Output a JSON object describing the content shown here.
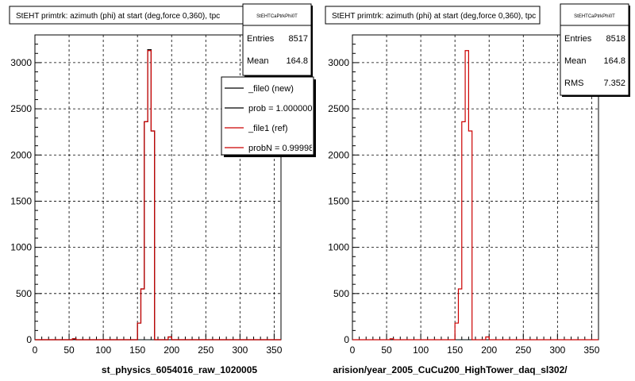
{
  "page": {
    "footer_text": ""
  },
  "chart_data": [
    {
      "type": "histogram",
      "title": "StEHT primtrk: azimuth (phi) at start (deg,force 0,360), tpc",
      "xlabel": "st_physics_6054016_raw_1020005",
      "xlim": [
        0,
        360
      ],
      "ylim": [
        0,
        3300
      ],
      "xticks": [
        0,
        50,
        100,
        150,
        200,
        250,
        300,
        350
      ],
      "yticks": [
        0,
        500,
        1000,
        1500,
        2000,
        2500,
        3000
      ],
      "grid": true,
      "stats": {
        "title": "StEHTCaPtrkPhi0T",
        "entries_label": "Entries",
        "entries": "8517",
        "mean_label": "Mean",
        "mean": "164.8"
      },
      "legend": {
        "placement": "top-right",
        "entries": [
          {
            "label": "_file0 (new)",
            "color": "#000000"
          },
          {
            "label": "prob = 1.000000",
            "color": "#000000"
          },
          {
            "label": "_file1 (ref)",
            "color": "#cc0000"
          },
          {
            "label": "probN = 0.99998",
            "color": "#cc0000"
          }
        ]
      },
      "series": [
        {
          "name": "_file0 (new)",
          "color": "#000000",
          "bin_edges": [
            0,
            5,
            10,
            15,
            20,
            25,
            30,
            35,
            40,
            45,
            50,
            55,
            60,
            65,
            70,
            75,
            80,
            85,
            90,
            95,
            100,
            105,
            110,
            115,
            120,
            125,
            130,
            135,
            140,
            145,
            150,
            155,
            160,
            165,
            170,
            175,
            180,
            185,
            190,
            195,
            200,
            205,
            210,
            215,
            220,
            225,
            230,
            235,
            240,
            245,
            250,
            255,
            260,
            265,
            270,
            275,
            280,
            285,
            290,
            295,
            300,
            305,
            310,
            315,
            320,
            325,
            330,
            335,
            340,
            345,
            350,
            355,
            360
          ],
          "values": [
            0,
            0,
            0,
            0,
            0,
            0,
            0,
            0,
            0,
            0,
            0,
            10,
            0,
            0,
            0,
            0,
            0,
            0,
            0,
            0,
            0,
            0,
            0,
            0,
            0,
            0,
            0,
            0,
            0,
            0,
            180,
            550,
            2360,
            3140,
            2260,
            0,
            0,
            0,
            0,
            30,
            0,
            0,
            0,
            0,
            0,
            0,
            0,
            0,
            0,
            0,
            0,
            0,
            0,
            0,
            0,
            0,
            0,
            0,
            0,
            0,
            0,
            0,
            0,
            0,
            0,
            0,
            0,
            0,
            0,
            0,
            0,
            0
          ]
        },
        {
          "name": "_file1 (ref)",
          "color": "#cc0000",
          "bin_edges": [
            0,
            5,
            10,
            15,
            20,
            25,
            30,
            35,
            40,
            45,
            50,
            55,
            60,
            65,
            70,
            75,
            80,
            85,
            90,
            95,
            100,
            105,
            110,
            115,
            120,
            125,
            130,
            135,
            140,
            145,
            150,
            155,
            160,
            165,
            170,
            175,
            180,
            185,
            190,
            195,
            200,
            205,
            210,
            215,
            220,
            225,
            230,
            235,
            240,
            245,
            250,
            255,
            260,
            265,
            270,
            275,
            280,
            285,
            290,
            295,
            300,
            305,
            310,
            315,
            320,
            325,
            330,
            335,
            340,
            345,
            350,
            355,
            360
          ],
          "values": [
            0,
            0,
            0,
            0,
            0,
            0,
            0,
            0,
            0,
            0,
            0,
            10,
            0,
            0,
            0,
            0,
            0,
            0,
            0,
            0,
            0,
            0,
            0,
            0,
            0,
            0,
            0,
            0,
            0,
            0,
            180,
            550,
            2360,
            3130,
            2260,
            0,
            0,
            0,
            0,
            30,
            0,
            0,
            0,
            0,
            0,
            0,
            0,
            0,
            0,
            0,
            0,
            0,
            0,
            0,
            0,
            0,
            0,
            0,
            0,
            0,
            0,
            0,
            0,
            0,
            0,
            0,
            0,
            0,
            0,
            0,
            0,
            0
          ]
        }
      ]
    },
    {
      "type": "histogram",
      "title": "StEHT primtrk: azimuth (phi) at start (deg,force 0,360), tpc",
      "xlabel": "arision/year_2005_CuCu200_HighTower_daq_sl302/",
      "xlim": [
        0,
        360
      ],
      "ylim": [
        0,
        3300
      ],
      "xticks": [
        0,
        50,
        100,
        150,
        200,
        250,
        300,
        350
      ],
      "yticks": [
        0,
        500,
        1000,
        1500,
        2000,
        2500,
        3000
      ],
      "grid": true,
      "stats": {
        "title": "StEHTCaPtrkPhi0T",
        "entries_label": "Entries",
        "entries": "8518",
        "mean_label": "Mean",
        "mean": "164.8",
        "rms_label": "RMS",
        "rms": "7.352"
      },
      "series": [
        {
          "name": "",
          "color": "#cc0000",
          "bin_edges": [
            0,
            5,
            10,
            15,
            20,
            25,
            30,
            35,
            40,
            45,
            50,
            55,
            60,
            65,
            70,
            75,
            80,
            85,
            90,
            95,
            100,
            105,
            110,
            115,
            120,
            125,
            130,
            135,
            140,
            145,
            150,
            155,
            160,
            165,
            170,
            175,
            180,
            185,
            190,
            195,
            200,
            205,
            210,
            215,
            220,
            225,
            230,
            235,
            240,
            245,
            250,
            255,
            260,
            265,
            270,
            275,
            280,
            285,
            290,
            295,
            300,
            305,
            310,
            315,
            320,
            325,
            330,
            335,
            340,
            345,
            350,
            355,
            360
          ],
          "values": [
            0,
            0,
            0,
            0,
            0,
            0,
            0,
            0,
            0,
            0,
            0,
            10,
            0,
            0,
            0,
            0,
            0,
            0,
            0,
            0,
            0,
            0,
            0,
            0,
            0,
            0,
            0,
            0,
            0,
            0,
            180,
            550,
            2360,
            3130,
            2260,
            0,
            0,
            0,
            0,
            30,
            0,
            0,
            0,
            0,
            0,
            0,
            0,
            0,
            0,
            0,
            0,
            0,
            0,
            0,
            0,
            0,
            0,
            0,
            0,
            0,
            0,
            0,
            0,
            0,
            0,
            0,
            0,
            0,
            0,
            0,
            0,
            0
          ]
        }
      ]
    }
  ]
}
